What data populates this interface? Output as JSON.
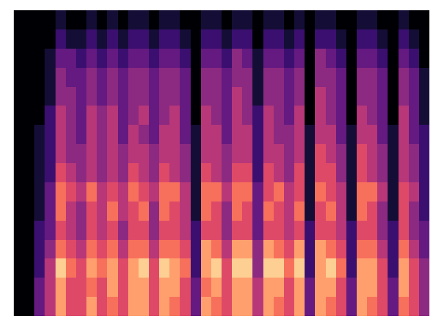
{
  "chart_data": {
    "type": "heatmap",
    "cells": [
      [
        0,
        0,
        3,
        5,
        8,
        6,
        6,
        8,
        6,
        7,
        6,
        8,
        8,
        6,
        8,
        7,
        6,
        3,
        8,
        7,
        6,
        8,
        8,
        5,
        8,
        7,
        6,
        8,
        3,
        8,
        7,
        6,
        3,
        8,
        7,
        6,
        3,
        7,
        6,
        4
      ],
      [
        0,
        0,
        3,
        5,
        8,
        6,
        6,
        7,
        6,
        8,
        6,
        8,
        8,
        6,
        8,
        8,
        6,
        3,
        7,
        8,
        6,
        8,
        8,
        5,
        8,
        8,
        6,
        8,
        3,
        8,
        8,
        6,
        3,
        8,
        8,
        6,
        3,
        8,
        6,
        4
      ],
      [
        0,
        0,
        2,
        5,
        9,
        7,
        6,
        8,
        7,
        8,
        6,
        8,
        9,
        6,
        9,
        8,
        7,
        2,
        8,
        9,
        6,
        9,
        9,
        4,
        9,
        9,
        7,
        9,
        2,
        8,
        9,
        7,
        2,
        8,
        8,
        6,
        2,
        8,
        6,
        4
      ],
      [
        0,
        0,
        2,
        4,
        7,
        6,
        5,
        7,
        6,
        7,
        5,
        7,
        7,
        5,
        7,
        7,
        6,
        2,
        8,
        7,
        5,
        8,
        8,
        4,
        8,
        7,
        6,
        8,
        2,
        8,
        7,
        6,
        2,
        7,
        7,
        5,
        2,
        7,
        5,
        3
      ],
      [
        0,
        0,
        2,
        3,
        6,
        5,
        4,
        6,
        5,
        6,
        4,
        6,
        6,
        4,
        6,
        6,
        5,
        2,
        6,
        6,
        4,
        6,
        6,
        3,
        6,
        6,
        5,
        6,
        2,
        6,
        6,
        5,
        2,
        6,
        6,
        4,
        2,
        6,
        4,
        3
      ],
      [
        0,
        0,
        1,
        3,
        7,
        5,
        4,
        6,
        5,
        7,
        5,
        6,
        7,
        4,
        7,
        6,
        5,
        1,
        7,
        6,
        4,
        7,
        6,
        3,
        7,
        6,
        5,
        7,
        1,
        6,
        7,
        5,
        1,
        7,
        6,
        4,
        1,
        6,
        4,
        2
      ],
      [
        0,
        0,
        1,
        3,
        7,
        6,
        5,
        7,
        5,
        6,
        5,
        7,
        6,
        5,
        7,
        7,
        5,
        1,
        7,
        7,
        5,
        7,
        7,
        3,
        6,
        7,
        5,
        6,
        1,
        7,
        6,
        5,
        1,
        7,
        7,
        5,
        1,
        6,
        5,
        2
      ],
      [
        0,
        0,
        1,
        2,
        6,
        5,
        4,
        5,
        4,
        5,
        4,
        6,
        5,
        4,
        6,
        5,
        4,
        1,
        6,
        5,
        4,
        6,
        6,
        2,
        6,
        5,
        4,
        6,
        1,
        6,
        6,
        4,
        1,
        6,
        5,
        4,
        1,
        5,
        4,
        2
      ],
      [
        0,
        0,
        1,
        2,
        5,
        4,
        4,
        5,
        4,
        5,
        4,
        5,
        5,
        4,
        5,
        5,
        4,
        1,
        5,
        5,
        4,
        5,
        5,
        2,
        5,
        5,
        4,
        5,
        1,
        6,
        5,
        4,
        1,
        6,
        5,
        4,
        1,
        5,
        4,
        2
      ],
      [
        0,
        0,
        1,
        2,
        5,
        4,
        3,
        5,
        4,
        5,
        3,
        5,
        4,
        3,
        5,
        5,
        3,
        1,
        5,
        5,
        3,
        5,
        5,
        2,
        5,
        4,
        4,
        5,
        1,
        5,
        5,
        3,
        1,
        5,
        5,
        3,
        1,
        5,
        3,
        2
      ],
      [
        0,
        0,
        0,
        2,
        5,
        4,
        3,
        5,
        4,
        5,
        3,
        4,
        5,
        3,
        4,
        5,
        3,
        0,
        5,
        4,
        3,
        5,
        4,
        2,
        5,
        4,
        3,
        5,
        0,
        5,
        4,
        3,
        0,
        5,
        4,
        3,
        0,
        5,
        3,
        1
      ],
      [
        0,
        0,
        0,
        1,
        4,
        4,
        3,
        4,
        3,
        4,
        3,
        4,
        4,
        3,
        4,
        4,
        3,
        0,
        4,
        4,
        3,
        5,
        4,
        1,
        4,
        4,
        3,
        4,
        0,
        5,
        4,
        3,
        0,
        4,
        4,
        3,
        0,
        4,
        3,
        1
      ],
      [
        0,
        0,
        0,
        1,
        4,
        3,
        3,
        4,
        3,
        4,
        3,
        4,
        4,
        3,
        4,
        4,
        3,
        0,
        4,
        4,
        3,
        4,
        4,
        1,
        4,
        4,
        3,
        4,
        0,
        4,
        4,
        3,
        0,
        4,
        4,
        3,
        0,
        4,
        3,
        1
      ],
      [
        0,
        0,
        0,
        1,
        3,
        3,
        2,
        3,
        2,
        3,
        2,
        3,
        3,
        2,
        3,
        3,
        2,
        0,
        3,
        3,
        2,
        4,
        3,
        1,
        3,
        3,
        2,
        3,
        0,
        4,
        3,
        2,
        0,
        3,
        3,
        2,
        0,
        3,
        2,
        0
      ],
      [
        0,
        0,
        0,
        0,
        2,
        1,
        1,
        2,
        1,
        2,
        1,
        2,
        2,
        1,
        2,
        2,
        1,
        0,
        2,
        2,
        1,
        2,
        2,
        0,
        2,
        2,
        1,
        2,
        0,
        2,
        2,
        1,
        0,
        2,
        2,
        1,
        0,
        2,
        1,
        0
      ],
      [
        0,
        0,
        0,
        0,
        1,
        0,
        0,
        1,
        0,
        1,
        0,
        1,
        1,
        0,
        1,
        1,
        0,
        0,
        1,
        1,
        0,
        1,
        1,
        0,
        1,
        1,
        0,
        1,
        0,
        1,
        1,
        0,
        0,
        1,
        1,
        0,
        0,
        1,
        0,
        0
      ]
    ],
    "zlim": [
      0,
      10
    ],
    "tick_labels": false
  }
}
